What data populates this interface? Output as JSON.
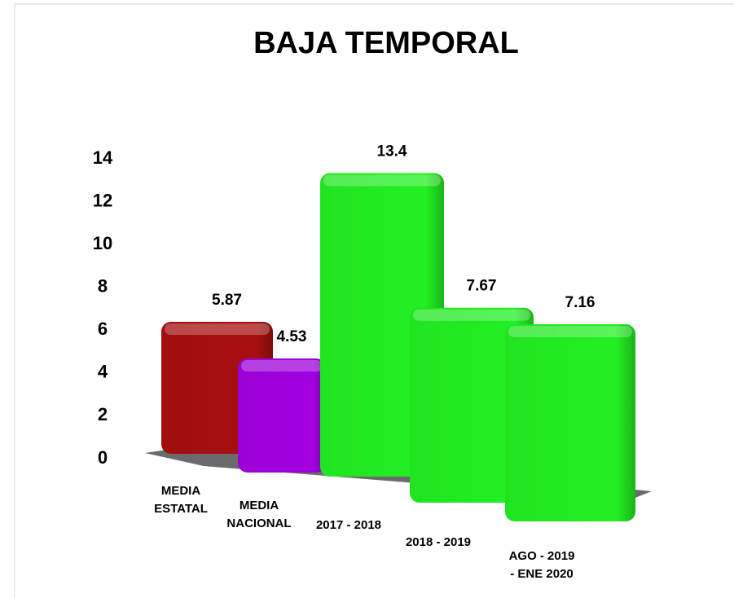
{
  "chart_data": {
    "type": "bar3d",
    "title": "BAJA TEMPORAL",
    "categories": [
      "MEDIA ESTATAL",
      "MEDIA NACIONAL",
      "2017 - 2018",
      "2018 - 2019",
      "AGO - 2019 - ENE 2020"
    ],
    "values": [
      5.87,
      4.53,
      13.4,
      7.67,
      7.16
    ],
    "colors": [
      "#a80f0f",
      "#a200e0",
      "#22f022",
      "#22f022",
      "#22f022"
    ],
    "ylim": [
      0,
      14
    ],
    "yticks": [
      0,
      2,
      4,
      6,
      8,
      10,
      12,
      14
    ]
  }
}
